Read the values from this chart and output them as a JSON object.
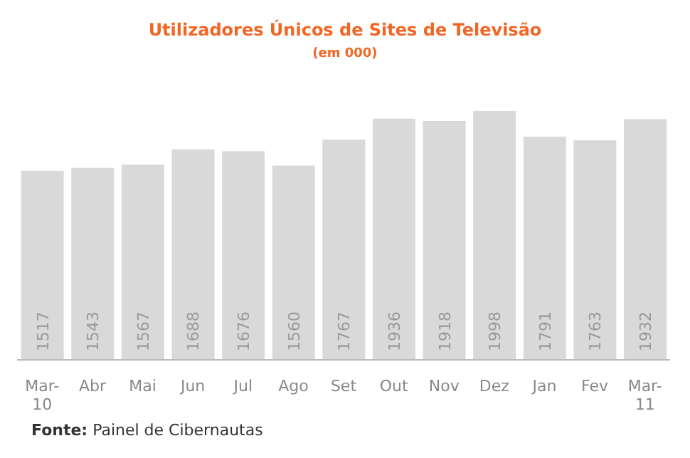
{
  "chart_data": {
    "type": "bar",
    "title": "Utilizadores Únicos de Sites de Televisão",
    "subtitle": "(em 000)",
    "categories": [
      "Mar-10",
      "Abr",
      "Mai",
      "Jun",
      "Jul",
      "Ago",
      "Set",
      "Out",
      "Nov",
      "Dez",
      "Jan",
      "Fev",
      "Mar-11"
    ],
    "values": [
      1517,
      1543,
      1567,
      1688,
      1676,
      1560,
      1767,
      1936,
      1918,
      1998,
      1791,
      1763,
      1932
    ],
    "color": "#d9d9d9",
    "data_labels": true,
    "annotations": [
      "Fonte: Painel de Cibernautas"
    ]
  }
}
